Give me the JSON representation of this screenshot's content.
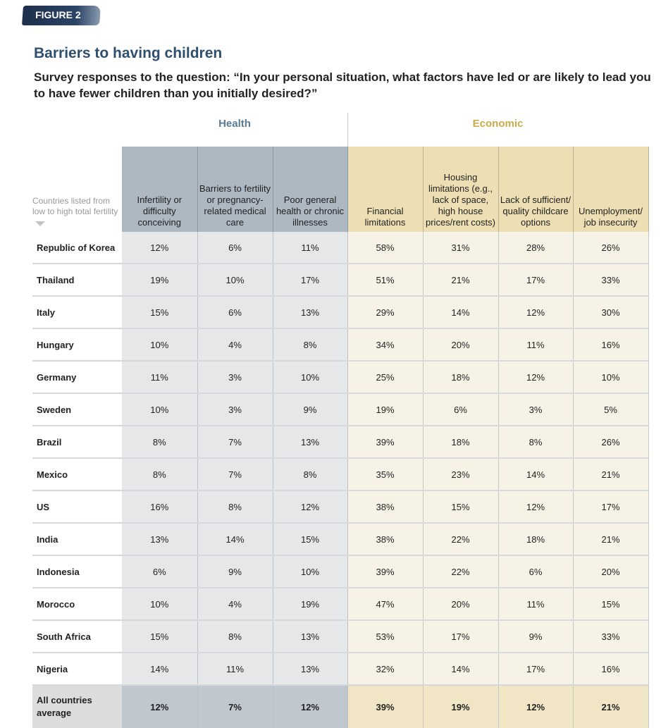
{
  "figure_label": "FIGURE 2",
  "title": "Barriers to having children",
  "subtitle": "Survey responses to the question: “In your personal situation, what factors have led or are likely to lead you to have fewer children than you initially desired?”",
  "groups": {
    "health": "Health",
    "economic": "Economic",
    "health_color": "#5b7c93",
    "economic_color": "#c9ac4c"
  },
  "sort_note": "Countries listed from low to high total fertility",
  "columns": [
    "Infertility or difficulty conceiving",
    "Barriers to fertility or pregnancy-related medical care",
    "Poor general health or chronic illnesses",
    "Financial limitations",
    "Housing limitations (e.g., lack of space, high house prices/rent costs)",
    "Lack of sufficient/ quality childcare options",
    "Unemployment/ job insecurity"
  ],
  "rows": [
    {
      "country": "Republic of Korea",
      "values": [
        "12%",
        "6%",
        "11%",
        "58%",
        "31%",
        "28%",
        "26%"
      ]
    },
    {
      "country": "Thailand",
      "values": [
        "19%",
        "10%",
        "17%",
        "51%",
        "21%",
        "17%",
        "33%"
      ]
    },
    {
      "country": "Italy",
      "values": [
        "15%",
        "6%",
        "13%",
        "29%",
        "14%",
        "12%",
        "30%"
      ]
    },
    {
      "country": "Hungary",
      "values": [
        "10%",
        "4%",
        "8%",
        "34%",
        "20%",
        "11%",
        "16%"
      ]
    },
    {
      "country": "Germany",
      "values": [
        "11%",
        "3%",
        "10%",
        "25%",
        "18%",
        "12%",
        "10%"
      ]
    },
    {
      "country": "Sweden",
      "values": [
        "10%",
        "3%",
        "9%",
        "19%",
        "6%",
        "3%",
        "5%"
      ]
    },
    {
      "country": "Brazil",
      "values": [
        "8%",
        "7%",
        "13%",
        "39%",
        "18%",
        "8%",
        "26%"
      ]
    },
    {
      "country": "Mexico",
      "values": [
        "8%",
        "7%",
        "8%",
        "35%",
        "23%",
        "14%",
        "21%"
      ]
    },
    {
      "country": "US",
      "values": [
        "16%",
        "8%",
        "12%",
        "38%",
        "15%",
        "12%",
        "17%"
      ]
    },
    {
      "country": "India",
      "values": [
        "13%",
        "14%",
        "15%",
        "38%",
        "22%",
        "18%",
        "21%"
      ]
    },
    {
      "country": "Indonesia",
      "values": [
        "6%",
        "9%",
        "10%",
        "39%",
        "22%",
        "6%",
        "20%"
      ]
    },
    {
      "country": "Morocco",
      "values": [
        "10%",
        "4%",
        "19%",
        "47%",
        "20%",
        "11%",
        "15%"
      ]
    },
    {
      "country": "South Africa",
      "values": [
        "15%",
        "8%",
        "13%",
        "53%",
        "17%",
        "9%",
        "33%"
      ]
    },
    {
      "country": "Nigeria",
      "values": [
        "14%",
        "11%",
        "13%",
        "32%",
        "14%",
        "17%",
        "16%"
      ]
    }
  ],
  "average": {
    "label": "All countries average",
    "values": [
      "12%",
      "7%",
      "12%",
      "39%",
      "19%",
      "12%",
      "21%"
    ]
  }
}
